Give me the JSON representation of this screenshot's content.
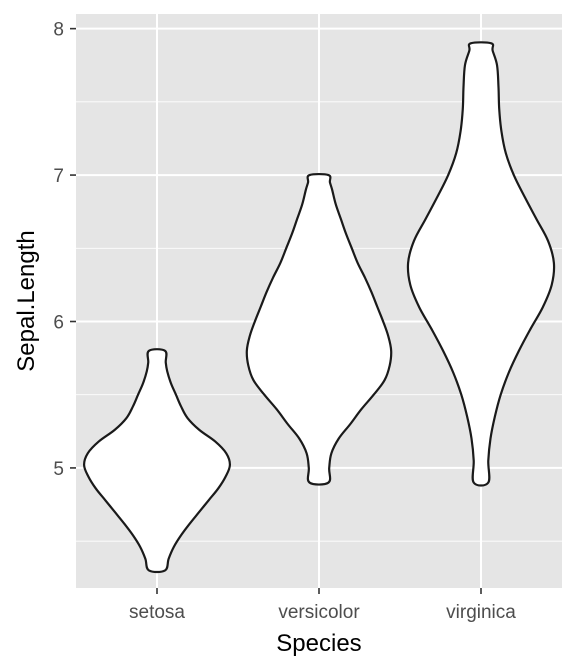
{
  "chart_data": {
    "type": "violin",
    "xlabel": "Species",
    "ylabel": "Sepal.Length",
    "categories": [
      "setosa",
      "versicolor",
      "virginica"
    ],
    "ylim": [
      4.18,
      8.1
    ],
    "y_ticks": [
      5,
      6,
      7,
      8
    ],
    "y_minor_ticks": [
      4.5,
      5.5,
      6.5,
      7.5
    ],
    "grid": true,
    "violin_fill": "#ffffff",
    "violin_stroke": "#1a1a1a",
    "panel_background": "#e5e5e5",
    "grid_color": "#ffffff",
    "series": [
      {
        "category": "setosa",
        "min": 4.3,
        "max": 5.8,
        "profile": [
          [
            4.3,
            0.11
          ],
          [
            4.38,
            0.16
          ],
          [
            4.46,
            0.23
          ],
          [
            4.54,
            0.33
          ],
          [
            4.62,
            0.45
          ],
          [
            4.7,
            0.58
          ],
          [
            4.78,
            0.71
          ],
          [
            4.86,
            0.84
          ],
          [
            4.94,
            0.94
          ],
          [
            5.02,
            1.0
          ],
          [
            5.1,
            0.95
          ],
          [
            5.18,
            0.8
          ],
          [
            5.26,
            0.58
          ],
          [
            5.34,
            0.42
          ],
          [
            5.42,
            0.33
          ],
          [
            5.5,
            0.26
          ],
          [
            5.58,
            0.19
          ],
          [
            5.66,
            0.14
          ],
          [
            5.72,
            0.12
          ],
          [
            5.8,
            0.11
          ]
        ]
      },
      {
        "category": "versicolor",
        "min": 4.9,
        "max": 7.0,
        "profile": [
          [
            4.9,
            0.13
          ],
          [
            5.0,
            0.14
          ],
          [
            5.1,
            0.17
          ],
          [
            5.2,
            0.27
          ],
          [
            5.3,
            0.43
          ],
          [
            5.4,
            0.58
          ],
          [
            5.5,
            0.75
          ],
          [
            5.6,
            0.9
          ],
          [
            5.7,
            0.97
          ],
          [
            5.8,
            0.99
          ],
          [
            5.9,
            0.95
          ],
          [
            6.0,
            0.88
          ],
          [
            6.1,
            0.8
          ],
          [
            6.2,
            0.72
          ],
          [
            6.3,
            0.63
          ],
          [
            6.4,
            0.53
          ],
          [
            6.5,
            0.45
          ],
          [
            6.6,
            0.37
          ],
          [
            6.7,
            0.3
          ],
          [
            6.8,
            0.23
          ],
          [
            6.9,
            0.18
          ],
          [
            6.95,
            0.15
          ],
          [
            7.0,
            0.13
          ]
        ]
      },
      {
        "category": "virginica",
        "min": 4.9,
        "max": 7.9,
        "profile": [
          [
            4.9,
            0.1
          ],
          [
            5.05,
            0.1
          ],
          [
            5.2,
            0.13
          ],
          [
            5.35,
            0.19
          ],
          [
            5.5,
            0.27
          ],
          [
            5.65,
            0.38
          ],
          [
            5.8,
            0.52
          ],
          [
            5.95,
            0.68
          ],
          [
            6.1,
            0.85
          ],
          [
            6.25,
            0.97
          ],
          [
            6.4,
            1.0
          ],
          [
            6.55,
            0.92
          ],
          [
            6.7,
            0.76
          ],
          [
            6.85,
            0.6
          ],
          [
            7.0,
            0.45
          ],
          [
            7.15,
            0.34
          ],
          [
            7.3,
            0.28
          ],
          [
            7.45,
            0.25
          ],
          [
            7.6,
            0.24
          ],
          [
            7.75,
            0.22
          ],
          [
            7.85,
            0.16
          ],
          [
            7.9,
            0.14
          ]
        ]
      }
    ]
  }
}
